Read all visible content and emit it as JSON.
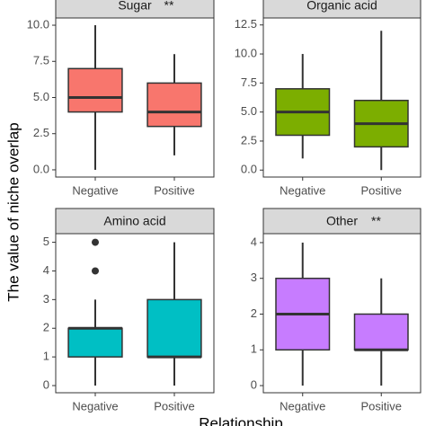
{
  "axis_labels": {
    "y": "The value of niche overlap",
    "x": "Relationship"
  },
  "chart_data": [
    {
      "type": "box",
      "title": "Sugar",
      "annotation": "**",
      "color": "#f8766d",
      "grid": false,
      "categories": [
        "Negative",
        "Positive"
      ],
      "boxes": [
        {
          "min": 0,
          "q1": 4,
          "median": 5,
          "q3": 7,
          "max": 10,
          "outliers": []
        },
        {
          "min": 1,
          "q1": 3,
          "median": 4,
          "q3": 6,
          "max": 8,
          "outliers": []
        }
      ],
      "ylim": [
        -0.5,
        10.5
      ],
      "yticks": [
        {
          "value": 0,
          "label": "0.0"
        },
        {
          "value": 2.5,
          "label": "2.5"
        },
        {
          "value": 5,
          "label": "5.0"
        },
        {
          "value": 7.5,
          "label": "7.5"
        },
        {
          "value": 10,
          "label": "10.0"
        }
      ]
    },
    {
      "type": "box",
      "title": "Organic acid",
      "color": "#7cae00",
      "grid": false,
      "categories": [
        "Negative",
        "Positive"
      ],
      "boxes": [
        {
          "min": 1,
          "q1": 3,
          "median": 5,
          "q3": 7,
          "max": 10,
          "outliers": []
        },
        {
          "min": 0,
          "q1": 2,
          "median": 4,
          "q3": 6,
          "max": 12,
          "outliers": []
        }
      ],
      "ylim": [
        -0.6,
        13.1
      ],
      "yticks": [
        {
          "value": 0,
          "label": "0.0"
        },
        {
          "value": 2.5,
          "label": "2.5"
        },
        {
          "value": 5,
          "label": "5.0"
        },
        {
          "value": 7.5,
          "label": "7.5"
        },
        {
          "value": 10,
          "label": "10.0"
        },
        {
          "value": 12.5,
          "label": "12.5"
        }
      ]
    },
    {
      "type": "box",
      "title": "Amino acid",
      "color": "#00bfc4",
      "grid": false,
      "categories": [
        "Negative",
        "Positive"
      ],
      "boxes": [
        {
          "min": 0,
          "q1": 1,
          "median": 2,
          "q3": 2,
          "max": 3,
          "outliers": [
            4,
            5
          ]
        },
        {
          "min": 0,
          "q1": 1,
          "median": 1,
          "q3": 3,
          "max": 5,
          "outliers": []
        }
      ],
      "ylim": [
        -0.25,
        5.3
      ],
      "yticks": [
        0,
        1,
        2,
        3,
        4,
        5
      ]
    },
    {
      "type": "box",
      "title": "Other",
      "annotation": "**",
      "color": "#c77cff",
      "grid": false,
      "categories": [
        "Negative",
        "Positive"
      ],
      "boxes": [
        {
          "min": 0,
          "q1": 1,
          "median": 2,
          "q3": 3,
          "max": 4,
          "outliers": []
        },
        {
          "min": 0,
          "q1": 1,
          "median": 1,
          "q3": 2,
          "max": 3,
          "outliers": []
        }
      ],
      "ylim": [
        -0.2,
        4.25
      ],
      "yticks": [
        0,
        1,
        2,
        3,
        4
      ]
    }
  ]
}
